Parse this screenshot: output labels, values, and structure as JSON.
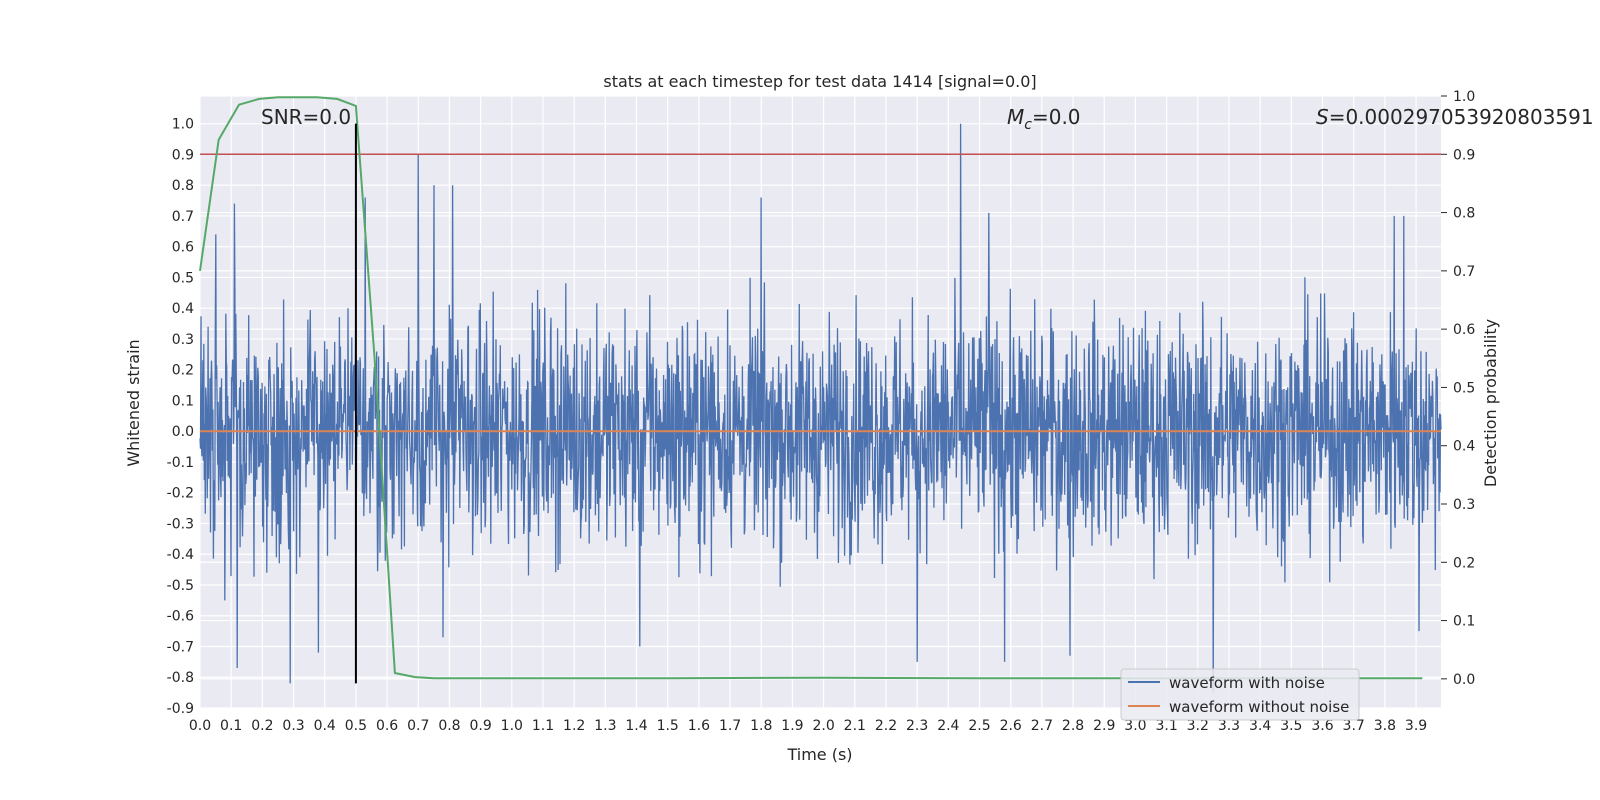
{
  "chart_data": {
    "type": "line",
    "title": "stats at each timestep for test data 1414 [signal=0.0]",
    "xlabel": "Time (s)",
    "ylabel": "Whitened strain",
    "y2label": "Detection probability",
    "xlim": [
      0.0,
      3.98
    ],
    "ylim": [
      -0.9,
      1.09
    ],
    "y2lim": [
      -0.05,
      1.0
    ],
    "x_ticks": [
      "0.0",
      "0.1",
      "0.2",
      "0.3",
      "0.4",
      "0.5",
      "0.6",
      "0.7",
      "0.8",
      "0.9",
      "1.0",
      "1.1",
      "1.2",
      "1.3",
      "1.4",
      "1.5",
      "1.6",
      "1.7",
      "1.8",
      "1.9",
      "2.0",
      "2.1",
      "2.2",
      "2.3",
      "2.4",
      "2.5",
      "2.6",
      "2.7",
      "2.8",
      "2.9",
      "3.0",
      "3.1",
      "3.2",
      "3.3",
      "3.4",
      "3.5",
      "3.6",
      "3.7",
      "3.8",
      "3.9"
    ],
    "y_ticks": [
      "1.0",
      "0.9",
      "0.8",
      "0.7",
      "0.6",
      "0.5",
      "0.4",
      "0.3",
      "0.2",
      "0.1",
      "0.0",
      "-0.1",
      "-0.2",
      "-0.3",
      "-0.4",
      "-0.5",
      "-0.6",
      "-0.7",
      "-0.8",
      "-0.9"
    ],
    "y2_ticks": [
      "1.0",
      "0.9",
      "0.8",
      "0.7",
      "0.6",
      "0.5",
      "0.4",
      "0.3",
      "0.2",
      "0.1",
      "0.0"
    ],
    "grid": true,
    "legend_position": "bottom-right",
    "annotations": {
      "snr": "SNR=0.0",
      "mc_symbol": "M",
      "mc_subscript": "c",
      "mc_value": "=0.0",
      "s_symbol": "S",
      "s_value": "=0.000297053920803591"
    },
    "series": [
      {
        "name": "waveform with noise",
        "color": "#4c72b0",
        "axis": "left",
        "description_of_values": "noise",
        "amplitude_typical": 0.3,
        "peaks": [
          {
            "x": 0.05,
            "y": 0.64
          },
          {
            "x": 0.08,
            "y": -0.55
          },
          {
            "x": 0.11,
            "y": 0.74
          },
          {
            "x": 0.12,
            "y": -0.77
          },
          {
            "x": 0.29,
            "y": -0.82
          },
          {
            "x": 0.38,
            "y": -0.72
          },
          {
            "x": 0.5,
            "y": -0.4
          },
          {
            "x": 0.53,
            "y": 0.76
          },
          {
            "x": 0.7,
            "y": 0.9
          },
          {
            "x": 0.75,
            "y": 0.8
          },
          {
            "x": 0.78,
            "y": -0.67
          },
          {
            "x": 0.81,
            "y": 0.8
          },
          {
            "x": 1.41,
            "y": -0.7
          },
          {
            "x": 1.8,
            "y": 0.76
          },
          {
            "x": 2.3,
            "y": -0.75
          },
          {
            "x": 2.44,
            "y": 1.0
          },
          {
            "x": 2.53,
            "y": 0.71
          },
          {
            "x": 2.58,
            "y": -0.75
          },
          {
            "x": 2.79,
            "y": -0.73
          },
          {
            "x": 3.25,
            "y": -0.85
          },
          {
            "x": 3.83,
            "y": 0.7
          },
          {
            "x": 3.86,
            "y": 0.7
          },
          {
            "x": 3.91,
            "y": -0.65
          }
        ]
      },
      {
        "name": "waveform without noise",
        "color": "#dd8452",
        "axis": "left",
        "x": [
          0.0,
          3.98
        ],
        "values": [
          0.0,
          0.0
        ]
      },
      {
        "name": "",
        "color": "#55a868",
        "axis": "right",
        "x": [
          0.0,
          0.06,
          0.125,
          0.19,
          0.25,
          0.31,
          0.375,
          0.44,
          0.5,
          0.56,
          0.625,
          0.69,
          0.75,
          0.81,
          1.0,
          1.5,
          2.0,
          2.5,
          3.0,
          3.5,
          3.92
        ],
        "values": [
          0.7,
          0.925,
          0.985,
          0.995,
          0.998,
          0.998,
          0.998,
          0.995,
          0.983,
          0.55,
          0.01,
          0.003,
          0.001,
          0.001,
          0.001,
          0.001,
          0.002,
          0.001,
          0.001,
          0.001,
          0.001
        ]
      }
    ],
    "reference_lines": {
      "threshold_y2": 0.9,
      "threshold_color": "#c44e52",
      "marker_x": 0.5,
      "marker_color": "#000000",
      "marker_y_range": [
        -0.82,
        1.0
      ]
    }
  }
}
